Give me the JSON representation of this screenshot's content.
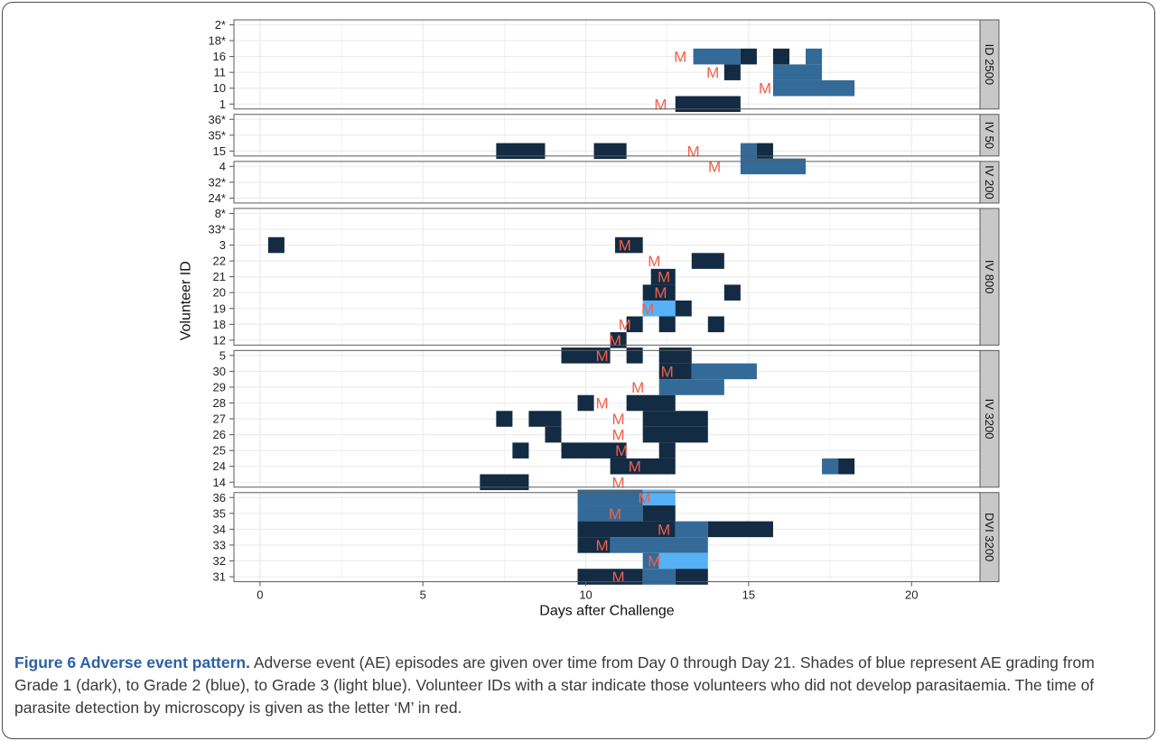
{
  "caption": {
    "label": "Figure 6 Adverse event pattern.",
    "text": " Adverse event (AE) episodes are given over time from Day 0 through Day 21. Shades of blue represent AE grading from Grade 1 (dark), to Grade 2 (blue), to Grade 3 (light blue). Volunteer IDs with a star indicate those volunteers who did not develop parasitaemia. The time of parasite detection by microscopy is given as the letter ‘M’ in red."
  },
  "chart_data": {
    "type": "heatmap",
    "xlabel": "Days after Challenge",
    "ylabel": "Volunteer ID",
    "xlim": [
      -0.8,
      22.1
    ],
    "x_ticks": [
      0,
      5,
      10,
      15,
      20
    ],
    "grid": true,
    "marker_text": "M",
    "colors": {
      "grade1": "#132b43",
      "grade2": "#336a98",
      "grade3": "#56b1f7",
      "marker": "#f0604a",
      "panel": "#ffffff",
      "grid": "#ebebeb",
      "strip": "#c8c8c8"
    },
    "panels": [
      {
        "name": "ID 2500",
        "rows": [
          "2*",
          "18*",
          "16",
          "11",
          "10",
          "1"
        ],
        "cells": [
          [
            "16",
            13.3,
            14.75,
            2
          ],
          [
            "16",
            14.75,
            15.25,
            1
          ],
          [
            "16",
            15.75,
            16.25,
            1
          ],
          [
            "16",
            16.75,
            17.25,
            2
          ],
          [
            "11",
            14.25,
            14.75,
            1
          ],
          [
            "11",
            15.75,
            17.25,
            2
          ],
          [
            "10",
            15.75,
            18.25,
            2
          ],
          [
            "1",
            12.75,
            14.75,
            1
          ]
        ],
        "markers": [
          [
            "16",
            12.9
          ],
          [
            "11",
            13.9
          ],
          [
            "10",
            15.5
          ],
          [
            "1",
            12.3
          ]
        ]
      },
      {
        "name": "IV 50",
        "rows": [
          "36*",
          "35*",
          "15"
        ],
        "cells": [
          [
            "15",
            7.25,
            8.75,
            1
          ],
          [
            "15",
            10.25,
            11.25,
            1
          ],
          [
            "15",
            14.75,
            15.25,
            2
          ],
          [
            "15",
            15.25,
            15.75,
            1
          ]
        ],
        "markers": [
          [
            "15",
            13.3
          ]
        ]
      },
      {
        "name": "IV 200",
        "rows": [
          "4",
          "32*",
          "24*"
        ],
        "cells": [
          [
            "4",
            14.75,
            16.75,
            2
          ]
        ],
        "markers": [
          [
            "4",
            13.95
          ]
        ]
      },
      {
        "name": "IV 800",
        "rows": [
          "8*",
          "33*",
          "3",
          "22",
          "21",
          "20",
          "19",
          "18",
          "12"
        ],
        "cells": [
          [
            "3",
            0.25,
            0.75,
            1
          ],
          [
            "3",
            10.9,
            11.75,
            1
          ],
          [
            "22",
            13.25,
            14.25,
            1
          ],
          [
            "21",
            12.0,
            12.75,
            1
          ],
          [
            "20",
            11.75,
            12.75,
            1
          ],
          [
            "20",
            14.25,
            14.75,
            1
          ],
          [
            "19",
            11.75,
            12.75,
            3
          ],
          [
            "19",
            12.75,
            13.25,
            1
          ],
          [
            "18",
            11.25,
            11.75,
            1
          ],
          [
            "18",
            12.25,
            12.75,
            1
          ],
          [
            "18",
            13.75,
            14.25,
            1
          ],
          [
            "12",
            10.75,
            11.25,
            1
          ]
        ],
        "markers": [
          [
            "3",
            11.2
          ],
          [
            "22",
            12.1
          ],
          [
            "21",
            12.4
          ],
          [
            "20",
            12.3
          ],
          [
            "19",
            11.9
          ],
          [
            "18",
            11.2
          ],
          [
            "12",
            10.9
          ]
        ]
      },
      {
        "name": "IV 3200",
        "rows": [
          "5",
          "30",
          "29",
          "28",
          "27",
          "26",
          "25",
          "24",
          "14"
        ],
        "cells": [
          [
            "5",
            9.25,
            10.75,
            1
          ],
          [
            "5",
            11.25,
            11.75,
            1
          ],
          [
            "5",
            12.25,
            13.25,
            1
          ],
          [
            "30",
            12.25,
            13.25,
            1
          ],
          [
            "30",
            13.25,
            15.25,
            2
          ],
          [
            "29",
            12.25,
            14.25,
            2
          ],
          [
            "28",
            9.75,
            10.25,
            1
          ],
          [
            "28",
            11.25,
            12.75,
            1
          ],
          [
            "27",
            7.25,
            7.75,
            1
          ],
          [
            "27",
            8.25,
            9.25,
            1
          ],
          [
            "27",
            11.75,
            13.75,
            1
          ],
          [
            "26",
            8.75,
            9.25,
            1
          ],
          [
            "26",
            11.75,
            13.75,
            1
          ],
          [
            "25",
            7.75,
            8.25,
            1
          ],
          [
            "25",
            9.25,
            11.25,
            1
          ],
          [
            "25",
            12.25,
            12.75,
            1
          ],
          [
            "24",
            10.75,
            12.75,
            1
          ],
          [
            "24",
            17.25,
            17.75,
            2
          ],
          [
            "24",
            17.75,
            18.25,
            1
          ],
          [
            "14",
            6.75,
            8.25,
            1
          ]
        ],
        "markers": [
          [
            "5",
            10.5
          ],
          [
            "30",
            12.5
          ],
          [
            "29",
            11.6
          ],
          [
            "28",
            10.5
          ],
          [
            "27",
            11.0
          ],
          [
            "26",
            11.0
          ],
          [
            "25",
            11.1
          ],
          [
            "24",
            11.5
          ],
          [
            "14",
            11.0
          ]
        ]
      },
      {
        "name": "DVI 3200",
        "rows": [
          "36",
          "35",
          "34",
          "33",
          "32",
          "31"
        ],
        "cells": [
          [
            "36",
            9.75,
            11.75,
            2
          ],
          [
            "36",
            11.75,
            12.75,
            3
          ],
          [
            "35",
            9.75,
            11.75,
            2
          ],
          [
            "35",
            11.75,
            12.75,
            1
          ],
          [
            "34",
            9.75,
            12.75,
            1
          ],
          [
            "34",
            12.75,
            13.75,
            2
          ],
          [
            "34",
            13.75,
            15.75,
            1
          ],
          [
            "33",
            9.75,
            10.75,
            1
          ],
          [
            "33",
            10.75,
            13.75,
            2
          ],
          [
            "32",
            11.75,
            12.25,
            2
          ],
          [
            "32",
            12.25,
            13.75,
            3
          ],
          [
            "31",
            9.75,
            11.75,
            1
          ],
          [
            "31",
            11.75,
            12.75,
            2
          ],
          [
            "31",
            12.75,
            13.75,
            1
          ]
        ],
        "markers": [
          [
            "36",
            11.8
          ],
          [
            "35",
            10.9
          ],
          [
            "34",
            12.4
          ],
          [
            "33",
            10.5
          ],
          [
            "32",
            12.1
          ],
          [
            "31",
            11.0
          ]
        ]
      }
    ]
  }
}
